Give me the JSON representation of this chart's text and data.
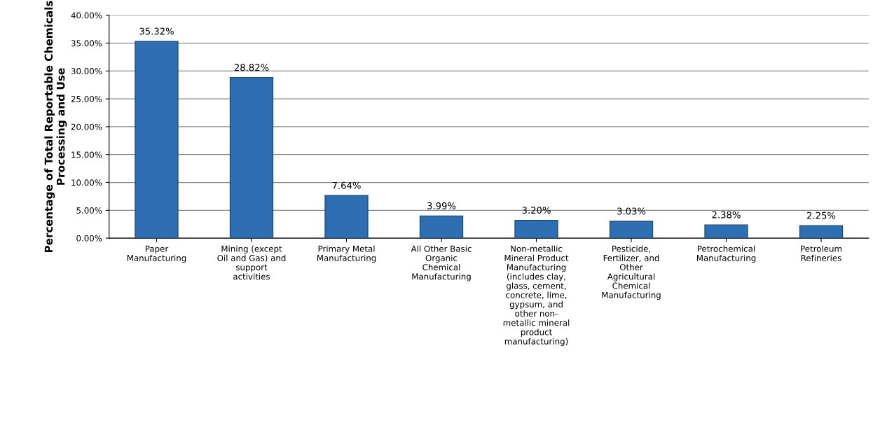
{
  "chart_data": {
    "type": "bar",
    "ylabel": "Percentage of Total Reportable Chemicals\nProcessing and Use",
    "categories": [
      "Paper\nManufacturing",
      "Mining (except\nOil and Gas) and\nsupport\nactivities",
      "Primary Metal\nManufacturing",
      "All Other Basic\nOrganic\nChemical\nManufacturing",
      "Non-metallic\nMineral Product\nManufacturing\n(includes clay,\nglass, cement,\nconcrete, lime,\ngypsum, and\nother non-\nmetallic mineral\nproduct\nmanufacturing)",
      "Pesticide,\nFertilizer, and\nOther\nAgricultural\nChemical\nManufacturing",
      "Petrochemical\nManufacturing",
      "Petroleum\nRefineries"
    ],
    "values": [
      35.32,
      28.82,
      7.64,
      3.99,
      3.2,
      3.03,
      2.38,
      2.25
    ],
    "value_labels": [
      "35.32%",
      "28.82%",
      "7.64%",
      "3.99%",
      "3.20%",
      "3.03%",
      "2.38%",
      "2.25%"
    ],
    "color": "#2e6fb4",
    "ylim": [
      0,
      40
    ],
    "yticks": [
      {
        "value": 0,
        "label": "0.00%"
      },
      {
        "value": 5,
        "label": "5.00%"
      },
      {
        "value": 10,
        "label": "10.00%"
      },
      {
        "value": 15,
        "label": "15.00%"
      },
      {
        "value": 20,
        "label": "20.00%"
      },
      {
        "value": 25,
        "label": "25.00%"
      },
      {
        "value": 30,
        "label": "30.00%"
      },
      {
        "value": 35,
        "label": "35.00%"
      },
      {
        "value": 40,
        "label": "40.00%"
      }
    ],
    "grid": "y"
  }
}
